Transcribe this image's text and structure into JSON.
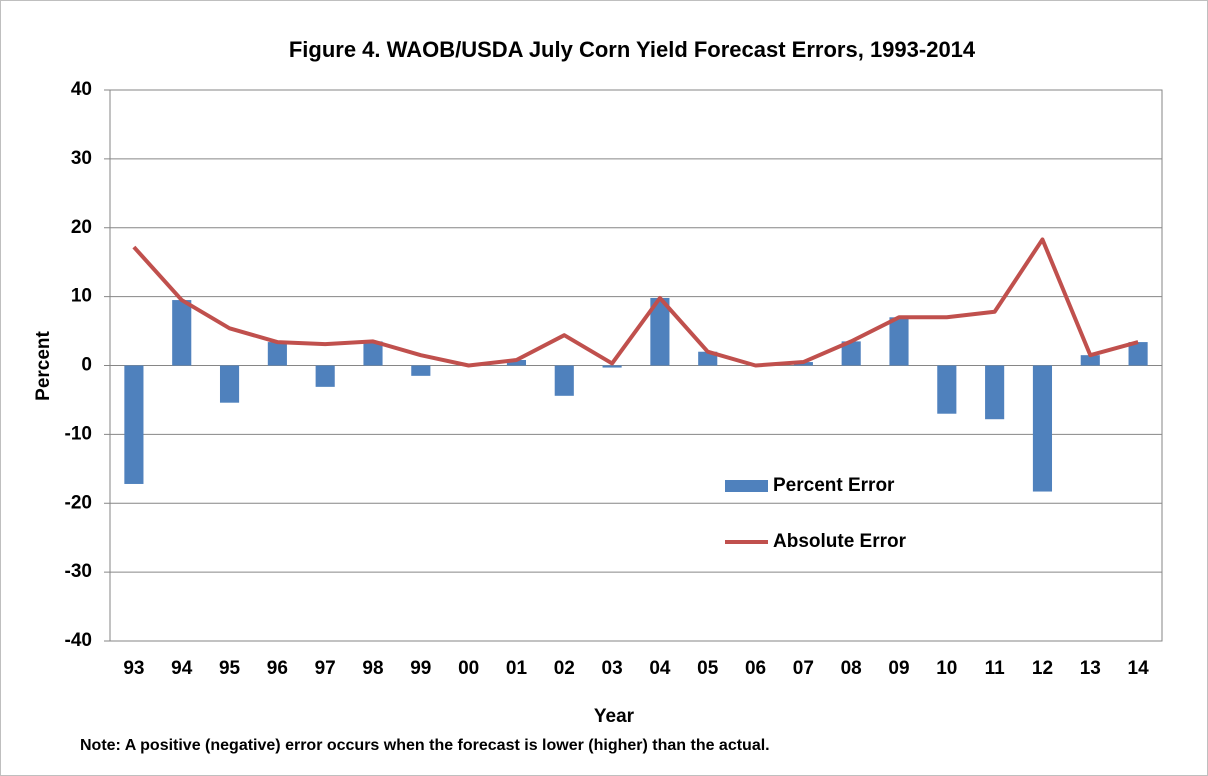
{
  "chart_data": {
    "type": "bar",
    "title": "Figure 4. WAOB/USDA  July Corn Yield Forecast Errors, 1993-2014",
    "x_label": "Year",
    "y_label": "Percent",
    "note": "Note:  A positive (negative) error occurs when the forecast is lower (higher) than the actual.",
    "categories": [
      "93",
      "94",
      "95",
      "96",
      "97",
      "98",
      "99",
      "00",
      "01",
      "02",
      "03",
      "04",
      "05",
      "06",
      "07",
      "08",
      "09",
      "10",
      "11",
      "12",
      "13",
      "14"
    ],
    "series": [
      {
        "name": "Percent Error",
        "type": "bar",
        "color": "#4f81bd",
        "values": [
          -17.2,
          9.5,
          -5.4,
          3.4,
          -3.1,
          3.5,
          -1.5,
          0,
          0.8,
          -4.4,
          -0.3,
          9.8,
          2.0,
          0,
          0.5,
          3.5,
          7.0,
          -7.0,
          -7.8,
          -18.3,
          1.5,
          3.4
        ]
      },
      {
        "name": "Absolute Error",
        "type": "line",
        "color": "#c0504d",
        "values": [
          17.2,
          9.5,
          5.4,
          3.4,
          3.1,
          3.5,
          1.5,
          0,
          0.8,
          4.4,
          0.3,
          9.8,
          2.0,
          0,
          0.5,
          3.5,
          7.0,
          7.0,
          7.8,
          18.3,
          1.5,
          3.4
        ]
      }
    ],
    "ylim": [
      -40,
      40
    ],
    "yticks": [
      -40,
      -30,
      -20,
      -10,
      0,
      10,
      20,
      30,
      40
    ],
    "grid": true
  }
}
